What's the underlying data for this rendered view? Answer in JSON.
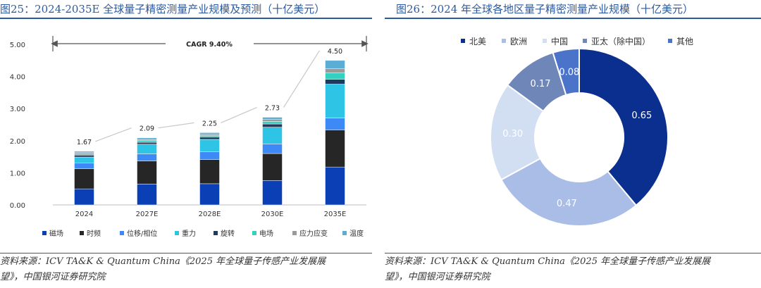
{
  "left": {
    "title": "图25：2024-2035E 全球量子精密测量产业规模及预测（十亿美元）",
    "source_line1": "资料来源：ICV TA&K & Quantum China《2025 年全球量子传感产业发展展",
    "source_line2": "望》，中国银河证券研究院"
  },
  "right": {
    "title": "图26：2024 年全球各地区量子精密测量产业规模（十亿美元）",
    "source_line1": "资料来源：ICV TA&K & Quantum China《2025 年全球量子传感产业发展展",
    "source_line2": "望》，中国银河证券研究院"
  },
  "colors": {
    "title_blue": "#2b5aa0",
    "segment_colors": [
      "#0a3fb5",
      "#262626",
      "#3d8af7",
      "#2ec4e6",
      "#1f3a5f",
      "#34d0c0",
      "#9a9a9a",
      "#5aaed6"
    ],
    "pie_colors": [
      "#0b2f8f",
      "#a9bde6",
      "#d2dff2",
      "#6f86b8",
      "#4a73c9"
    ]
  },
  "chart_data": [
    {
      "type": "bar",
      "stacked": true,
      "title": "2024-2035E 全球量子精密测量产业规模及预测（十亿美元）",
      "categories": [
        "2024",
        "2027E",
        "2028E",
        "2030E",
        "2035E"
      ],
      "totals": [
        1.67,
        2.09,
        2.25,
        2.73,
        4.5
      ],
      "total_labels": [
        "1.67",
        "2.09",
        "2.25",
        "2.73",
        "4.50"
      ],
      "series": [
        {
          "name": "磁场",
          "values": [
            0.5,
            0.65,
            0.66,
            0.76,
            1.18
          ]
        },
        {
          "name": "时频",
          "values": [
            0.63,
            0.72,
            0.75,
            0.84,
            1.15
          ]
        },
        {
          "name": "位移/相位",
          "values": [
            0.18,
            0.22,
            0.25,
            0.3,
            0.38
          ]
        },
        {
          "name": "重力",
          "values": [
            0.18,
            0.3,
            0.38,
            0.52,
            1.05
          ]
        },
        {
          "name": "旋转",
          "values": [
            0.06,
            0.06,
            0.07,
            0.1,
            0.15
          ]
        },
        {
          "name": "电场",
          "values": [
            0.04,
            0.05,
            0.05,
            0.08,
            0.2
          ]
        },
        {
          "name": "应力应变",
          "values": [
            0.04,
            0.04,
            0.04,
            0.06,
            0.13
          ]
        },
        {
          "name": "温度",
          "values": [
            0.04,
            0.05,
            0.05,
            0.07,
            0.26
          ]
        }
      ],
      "annotation": "CAGR 9.40%",
      "yticks": [
        "0.00",
        "1.00",
        "2.00",
        "3.00",
        "4.00",
        "5.00"
      ],
      "ylim": [
        0,
        5
      ],
      "legend_position": "bottom",
      "xlabel": "",
      "ylabel": ""
    },
    {
      "type": "pie",
      "donut": true,
      "title": "2024 年全球各地区量子精密测量产业规模（十亿美元）",
      "labels": [
        "北美",
        "欧洲",
        "中国",
        "亚太（除中国）",
        "其他"
      ],
      "values": [
        0.65,
        0.47,
        0.3,
        0.17,
        0.08
      ],
      "value_labels": [
        "0.65",
        "0.47",
        "0.30",
        "0.17",
        "0.08"
      ],
      "legend_position": "top"
    }
  ]
}
